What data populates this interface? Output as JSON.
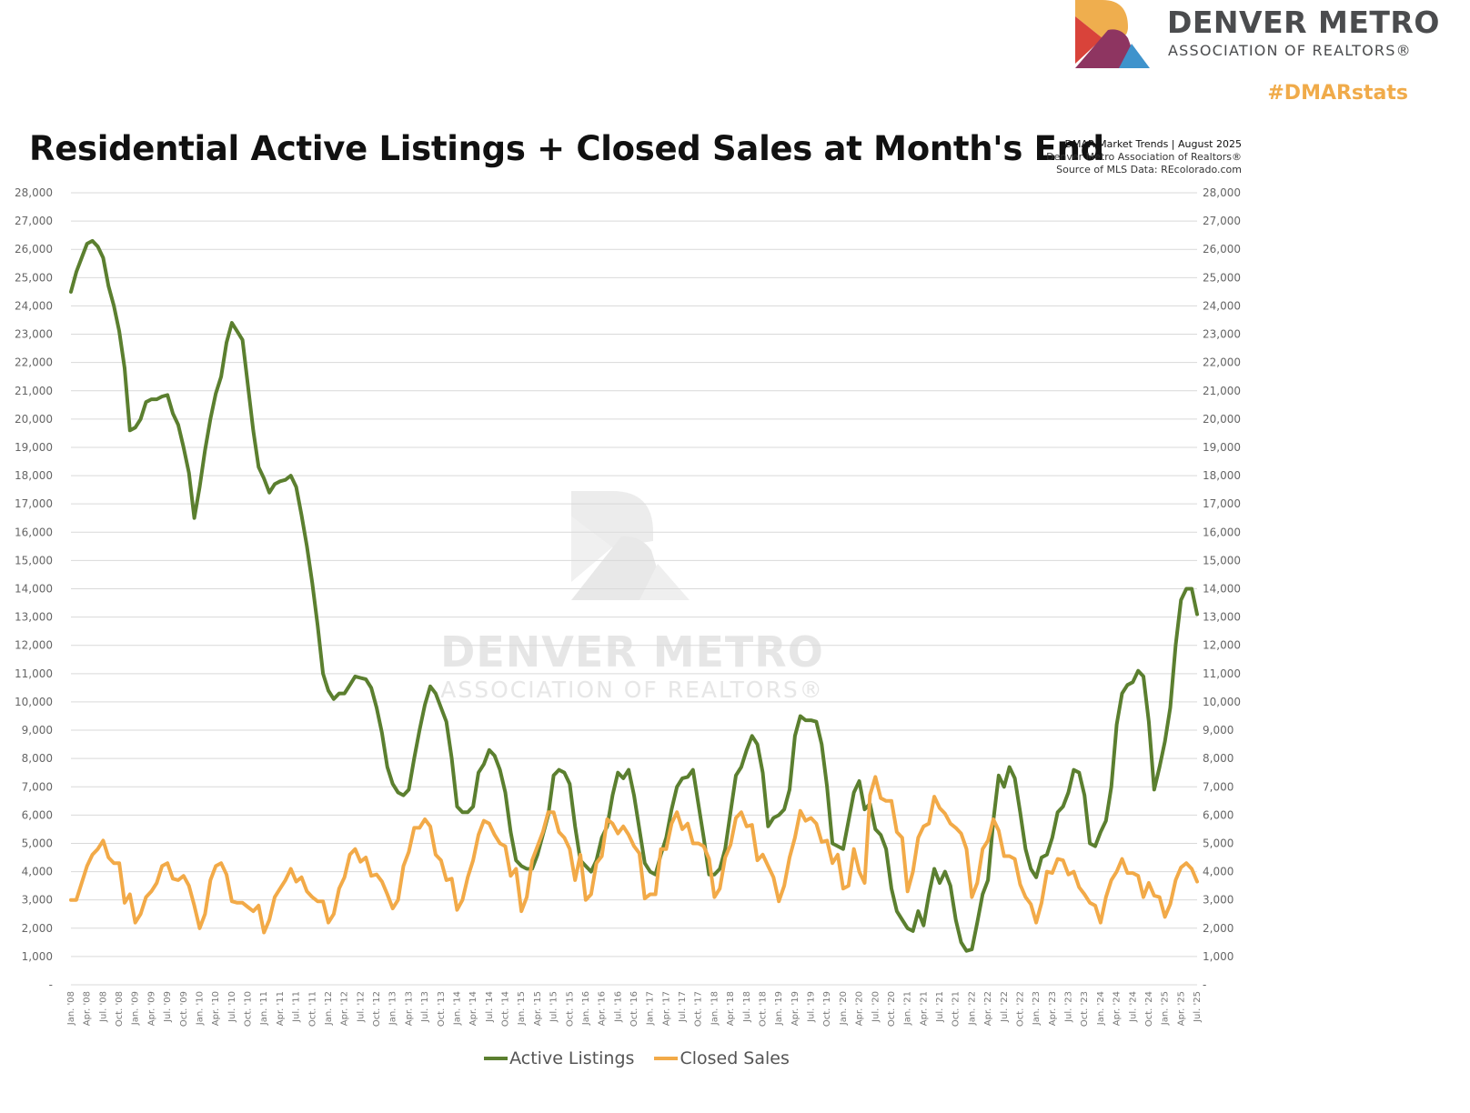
{
  "brand": {
    "name": "DENVER METRO",
    "subtitle": "ASSOCIATION OF REALTORS®",
    "hashtag": "#DMARstats"
  },
  "meta": {
    "line1": "DMAR Market Trends | August 2025",
    "line2": "Denver Metro Association of Realtors®",
    "line3": "Source of MLS Data: REcolorado.com"
  },
  "watermark": {
    "line1": "DENVER METRO",
    "line2": "ASSOCIATION OF REALTORS®"
  },
  "chart_data": {
    "type": "line",
    "title": "Residential Active Listings + Closed Sales at Month's End",
    "xlabel": "",
    "ylabel": "",
    "ylim": [
      0,
      28000
    ],
    "y_tick_labels": [
      "-",
      "1,000",
      "2,000",
      "3,000",
      "4,000",
      "5,000",
      "6,000",
      "7,000",
      "8,000",
      "9,000",
      "10,000",
      "11,000",
      "12,000",
      "13,000",
      "14,000",
      "15,000",
      "16,000",
      "17,000",
      "18,000",
      "19,000",
      "20,000",
      "21,000",
      "22,000",
      "23,000",
      "24,000",
      "25,000",
      "26,000",
      "27,000",
      "28,000"
    ],
    "x_start": "Jan '08",
    "x_end": "Jul '25",
    "x_interval": "monthly",
    "x_tick_labels": [
      "Jan. '08",
      "Apr. '08",
      "Jul. '08",
      "Oct. '08",
      "Jan. '09",
      "Apr. '09",
      "Jul. '09",
      "Oct. '09",
      "Jan. '10",
      "Apr. '10",
      "Jul. '10",
      "Oct. '10",
      "Jan. '11",
      "Apr. '11",
      "Jul. '11",
      "Oct. '11",
      "Jan. '12",
      "Apr. '12",
      "Jul. '12",
      "Oct. '12",
      "Jan. '13",
      "Apr. '13",
      "Jul. '13",
      "Oct. '13",
      "Jan. '14",
      "Apr. '14",
      "Jul. '14",
      "Oct. '14",
      "Jan. '15",
      "Apr. '15",
      "Jul. '15",
      "Oct. '15",
      "Jan. '16",
      "Apr. '16",
      "Jul. '16",
      "Oct. '16",
      "Jan. '17",
      "Apr. '17",
      "Jul. '17",
      "Oct. '17",
      "Jan. '18",
      "Apr. '18",
      "Jul. '18",
      "Oct. '18",
      "Jan. '19",
      "Apr. '19",
      "Jul. '19",
      "Oct. '19",
      "Jan. '20",
      "Apr. '20",
      "Jul. '20",
      "Oct. '20",
      "Jan. '21",
      "Apr. '21",
      "Jul. '21",
      "Oct. '21",
      "Jan. '22",
      "Apr. '22",
      "Jul. '22",
      "Oct. '22",
      "Jan. '23",
      "Apr. '23",
      "Jul. '23",
      "Oct. '23",
      "Jan. '24",
      "Apr. '24",
      "Jul. '24",
      "Oct. '24",
      "Jan. '25",
      "Apr. '25",
      "Jul. '25"
    ],
    "grid": true,
    "legend_position": "bottom",
    "series": [
      {
        "name": "Active Listings",
        "color": "#5b7f2f",
        "values": [
          24500,
          25200,
          25700,
          26200,
          26300,
          26100,
          25700,
          24700,
          24000,
          23100,
          21800,
          19600,
          19700,
          20000,
          20600,
          20700,
          20700,
          20800,
          20850,
          20200,
          19800,
          19000,
          18100,
          16500,
          17600,
          18900,
          20000,
          20900,
          21500,
          22700,
          23400,
          23100,
          22800,
          21200,
          19600,
          18300,
          17900,
          17400,
          17700,
          17800,
          17850,
          18000,
          17600,
          16600,
          15500,
          14200,
          12700,
          11000,
          10400,
          10100,
          10300,
          10300,
          10600,
          10900,
          10850,
          10800,
          10500,
          9800,
          8900,
          7700,
          7100,
          6800,
          6700,
          6900,
          8000,
          9000,
          9900,
          10550,
          10300,
          9800,
          9300,
          8000,
          6300,
          6100,
          6100,
          6300,
          7500,
          7800,
          8300,
          8100,
          7600,
          6800,
          5400,
          4400,
          4200,
          4100,
          4100,
          4600,
          5300,
          6000,
          7400,
          7600,
          7500,
          7100,
          5600,
          4400,
          4200,
          4000,
          4400,
          5200,
          5600,
          6700,
          7500,
          7300,
          7600,
          6700,
          5500,
          4300,
          4000,
          3900,
          4600,
          5200,
          6200,
          7000,
          7300,
          7350,
          7600,
          6400,
          5200,
          3900,
          3900,
          4100,
          4800,
          6100,
          7400,
          7700,
          8300,
          8800,
          8500,
          7500,
          5600,
          5900,
          6000,
          6200,
          6900,
          8800,
          9500,
          9350,
          9350,
          9300,
          8500,
          7000,
          5000,
          4900,
          4800,
          5800,
          6800,
          7200,
          6200,
          6400,
          5500,
          5300,
          4800,
          3400,
          2600,
          2300,
          2000,
          1900,
          2600,
          2100,
          3200,
          4100,
          3600,
          4000,
          3500,
          2300,
          1500,
          1200,
          1250,
          2200,
          3200,
          3700,
          5800,
          7400,
          7000,
          7700,
          7300,
          6100,
          4800,
          4100,
          3800,
          4500,
          4600,
          5200,
          6100,
          6300,
          6800,
          7600,
          7500,
          6700,
          5000,
          4900,
          5400,
          5800,
          7000,
          9200,
          10300,
          10600,
          10700,
          11100,
          10900,
          9300,
          6900,
          7700,
          8600,
          9800,
          12000,
          13600,
          14000,
          14000,
          13100
        ]
      },
      {
        "name": "Closed Sales",
        "color": "#f2aa48",
        "values": [
          3000,
          3000,
          3600,
          4200,
          4600,
          4800,
          5100,
          4500,
          4300,
          4300,
          2900,
          3200,
          2200,
          2500,
          3100,
          3300,
          3600,
          4200,
          4300,
          3750,
          3700,
          3850,
          3500,
          2800,
          2000,
          2500,
          3700,
          4200,
          4300,
          3900,
          2950,
          2900,
          2900,
          2750,
          2600,
          2800,
          1850,
          2300,
          3100,
          3400,
          3700,
          4100,
          3650,
          3800,
          3300,
          3100,
          2950,
          2950,
          2200,
          2500,
          3400,
          3800,
          4600,
          4800,
          4350,
          4500,
          3850,
          3900,
          3650,
          3200,
          2700,
          3000,
          4200,
          4700,
          5550,
          5550,
          5850,
          5600,
          4600,
          4400,
          3700,
          3750,
          2650,
          3000,
          3800,
          4400,
          5300,
          5800,
          5700,
          5300,
          5000,
          4900,
          3850,
          4100,
          2600,
          3100,
          4400,
          4900,
          5400,
          6100,
          6100,
          5400,
          5200,
          4800,
          3700,
          4600,
          3000,
          3200,
          4300,
          4550,
          5850,
          5700,
          5350,
          5600,
          5300,
          4900,
          4650,
          3050,
          3200,
          3200,
          4800,
          4800,
          5700,
          6100,
          5500,
          5700,
          5000,
          5000,
          4900,
          4450,
          3100,
          3400,
          4500,
          4950,
          5900,
          6100,
          5600,
          5650,
          4400,
          4600,
          4200,
          3800,
          2950,
          3500,
          4500,
          5200,
          6150,
          5800,
          5900,
          5700,
          5050,
          5100,
          4300,
          4600,
          3400,
          3500,
          4800,
          4000,
          3600,
          6700,
          7350,
          6600,
          6500,
          6500,
          5400,
          5200,
          3300,
          4000,
          5200,
          5600,
          5700,
          6650,
          6250,
          6050,
          5700,
          5550,
          5350,
          4800,
          3100,
          3600,
          4800,
          5100,
          5850,
          5450,
          4550,
          4550,
          4450,
          3550,
          3100,
          2850,
          2200,
          2900,
          4000,
          3950,
          4450,
          4400,
          3900,
          4000,
          3450,
          3200,
          2900,
          2800,
          2200,
          3100,
          3700,
          4000,
          4450,
          3950,
          3950,
          3850,
          3100,
          3600,
          3150,
          3100,
          2400,
          2850,
          3700,
          4150,
          4300,
          4100,
          3650
        ]
      }
    ]
  }
}
